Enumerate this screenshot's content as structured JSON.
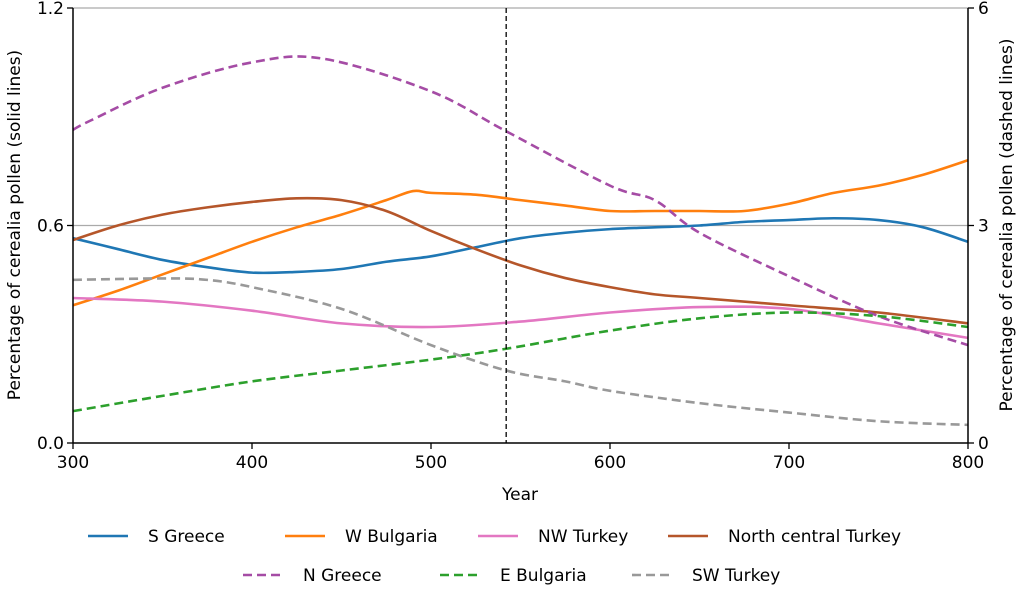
{
  "chart_data": {
    "type": "line",
    "xlabel": "Year",
    "ylabel_left": "Percentage of cerealia pollen (solid lines)",
    "ylabel_right": "Percentage of cerealia pollen (dashed lines)",
    "xlim": [
      300,
      800
    ],
    "ylim_left": [
      0,
      1.2
    ],
    "ylim_right": [
      0,
      6
    ],
    "xticks": [
      "300",
      "400",
      "500",
      "600",
      "700",
      "800"
    ],
    "yticks_left": [
      "0.0",
      "0.6",
      "1.2"
    ],
    "yticks_right": [
      "0",
      "3",
      "6"
    ],
    "grid_lines_left": [
      0.6,
      1.2
    ],
    "vertical_marker_year": 542,
    "legend_placement": "bottom",
    "series": [
      {
        "name": "S Greece",
        "axis": "left",
        "style": "solid",
        "color": "#1f77b4",
        "x": [
          300,
          325,
          350,
          375,
          400,
          425,
          450,
          475,
          500,
          525,
          550,
          575,
          600,
          625,
          650,
          675,
          700,
          725,
          750,
          775,
          800
        ],
        "y": [
          0.565,
          0.535,
          0.505,
          0.485,
          0.47,
          0.472,
          0.48,
          0.5,
          0.515,
          0.54,
          0.565,
          0.58,
          0.59,
          0.595,
          0.6,
          0.61,
          0.615,
          0.62,
          0.615,
          0.595,
          0.555
        ]
      },
      {
        "name": "W Bulgaria",
        "axis": "left",
        "style": "solid",
        "color": "#ff7f0e",
        "x": [
          300,
          325,
          350,
          375,
          400,
          425,
          450,
          475,
          490,
          500,
          525,
          550,
          575,
          600,
          625,
          650,
          675,
          700,
          725,
          750,
          775,
          800
        ],
        "y": [
          0.38,
          0.42,
          0.465,
          0.51,
          0.555,
          0.595,
          0.63,
          0.67,
          0.695,
          0.69,
          0.685,
          0.67,
          0.655,
          0.64,
          0.64,
          0.64,
          0.64,
          0.66,
          0.69,
          0.71,
          0.74,
          0.78
        ]
      },
      {
        "name": "NW Turkey",
        "axis": "left",
        "style": "solid",
        "color": "#e377c2",
        "x": [
          300,
          350,
          400,
          450,
          500,
          550,
          600,
          650,
          700,
          750,
          800
        ],
        "y": [
          0.4,
          0.39,
          0.365,
          0.33,
          0.32,
          0.335,
          0.36,
          0.375,
          0.37,
          0.33,
          0.29
        ]
      },
      {
        "name": "North central Turkey",
        "axis": "left",
        "style": "solid",
        "color": "#b5562a",
        "x": [
          300,
          325,
          350,
          375,
          400,
          425,
          450,
          475,
          500,
          525,
          550,
          575,
          600,
          625,
          650,
          700,
          750,
          800
        ],
        "y": [
          0.56,
          0.6,
          0.63,
          0.65,
          0.665,
          0.675,
          0.67,
          0.64,
          0.585,
          0.535,
          0.49,
          0.455,
          0.43,
          0.41,
          0.4,
          0.38,
          0.36,
          0.33
        ]
      },
      {
        "name": "N Greece",
        "axis": "right",
        "style": "dashed",
        "color": "#a54ca5",
        "x": [
          300,
          310,
          350,
          400,
          440,
          500,
          542,
          600,
          625,
          650,
          700,
          750,
          800
        ],
        "y": [
          4.32,
          4.45,
          4.9,
          5.25,
          5.3,
          4.85,
          4.3,
          3.55,
          3.35,
          2.9,
          2.3,
          1.75,
          1.35
        ]
      },
      {
        "name": "E Bulgaria",
        "axis": "right",
        "style": "dashed",
        "color": "#2ca02c",
        "x": [
          300,
          350,
          400,
          450,
          500,
          542,
          600,
          650,
          700,
          750,
          800
        ],
        "y": [
          0.44,
          0.65,
          0.85,
          1.0,
          1.15,
          1.3,
          1.55,
          1.72,
          1.8,
          1.75,
          1.6
        ]
      },
      {
        "name": "SW Turkey",
        "axis": "right",
        "style": "dashed",
        "color": "#999999",
        "x": [
          300,
          350,
          375,
          400,
          450,
          500,
          542,
          575,
          600,
          650,
          700,
          750,
          800
        ],
        "y": [
          2.25,
          2.27,
          2.25,
          2.15,
          1.85,
          1.35,
          1.0,
          0.85,
          0.72,
          0.55,
          0.42,
          0.3,
          0.25
        ]
      }
    ]
  }
}
